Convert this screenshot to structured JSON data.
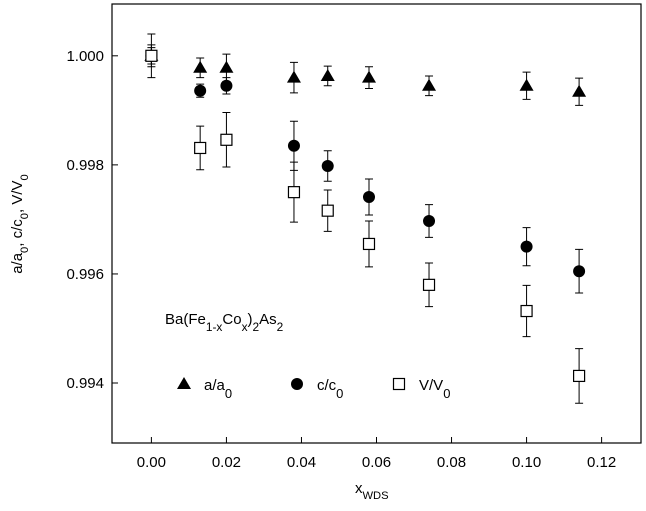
{
  "chart_data": {
    "type": "scatter",
    "x": [
      0,
      0.013,
      0.02,
      0.038,
      0.047,
      0.058,
      0.074,
      0.1,
      0.114
    ],
    "series": [
      {
        "name": "a/a0",
        "marker": "triangle",
        "color": "#000000",
        "values": [
          1.0,
          0.99978,
          0.99978,
          0.9996,
          0.99963,
          0.9996,
          0.99945,
          0.99945,
          0.99934
        ],
        "errors": [
          0.0002,
          0.00018,
          0.00025,
          0.00028,
          0.00018,
          0.0002,
          0.00018,
          0.00025,
          0.00025
        ]
      },
      {
        "name": "c/c0",
        "marker": "circle",
        "color": "#000000",
        "values": [
          1.0,
          0.99936,
          0.99945,
          0.99835,
          0.99798,
          0.99741,
          0.99697,
          0.9965,
          0.99605
        ],
        "errors": [
          0.00015,
          0.00012,
          0.00015,
          0.00045,
          0.00028,
          0.00033,
          0.0003,
          0.00035,
          0.0004
        ]
      },
      {
        "name": "V/V0",
        "marker": "square",
        "color": "#000000",
        "values": [
          1.0,
          0.99831,
          0.99846,
          0.9975,
          0.99716,
          0.99655,
          0.9958,
          0.99532,
          0.99413
        ],
        "errors": [
          0.0004,
          0.0004,
          0.0005,
          0.00055,
          0.00038,
          0.00042,
          0.0004,
          0.00047,
          0.0005
        ]
      }
    ],
    "xlabel": [
      "x",
      "WDS"
    ],
    "ylabel": [
      "a/a",
      "0",
      ", c/c",
      "0",
      ", V/V",
      "0"
    ],
    "annotation": [
      "Ba(Fe",
      "1-x",
      "Co",
      "x",
      ")",
      "2",
      "As",
      "2"
    ],
    "xlim": [
      -0.0105,
      0.1305
    ],
    "ylim": [
      0.9929,
      1.00095
    ],
    "xticks": [
      {
        "value": 0,
        "label": "0.00"
      },
      {
        "value": 0.02,
        "label": "0.02"
      },
      {
        "value": 0.04,
        "label": "0.04"
      },
      {
        "value": 0.06,
        "label": "0.06"
      },
      {
        "value": 0.08,
        "label": "0.08"
      },
      {
        "value": 0.1,
        "label": "0.10"
      },
      {
        "value": 0.12,
        "label": "0.12"
      }
    ],
    "yticks": [
      {
        "value": 0.994,
        "label": "0.994"
      },
      {
        "value": 0.996,
        "label": "0.996"
      },
      {
        "value": 0.998,
        "label": "0.998"
      },
      {
        "value": 1.0,
        "label": "1.000"
      }
    ],
    "grid": false,
    "legend": "lower"
  }
}
